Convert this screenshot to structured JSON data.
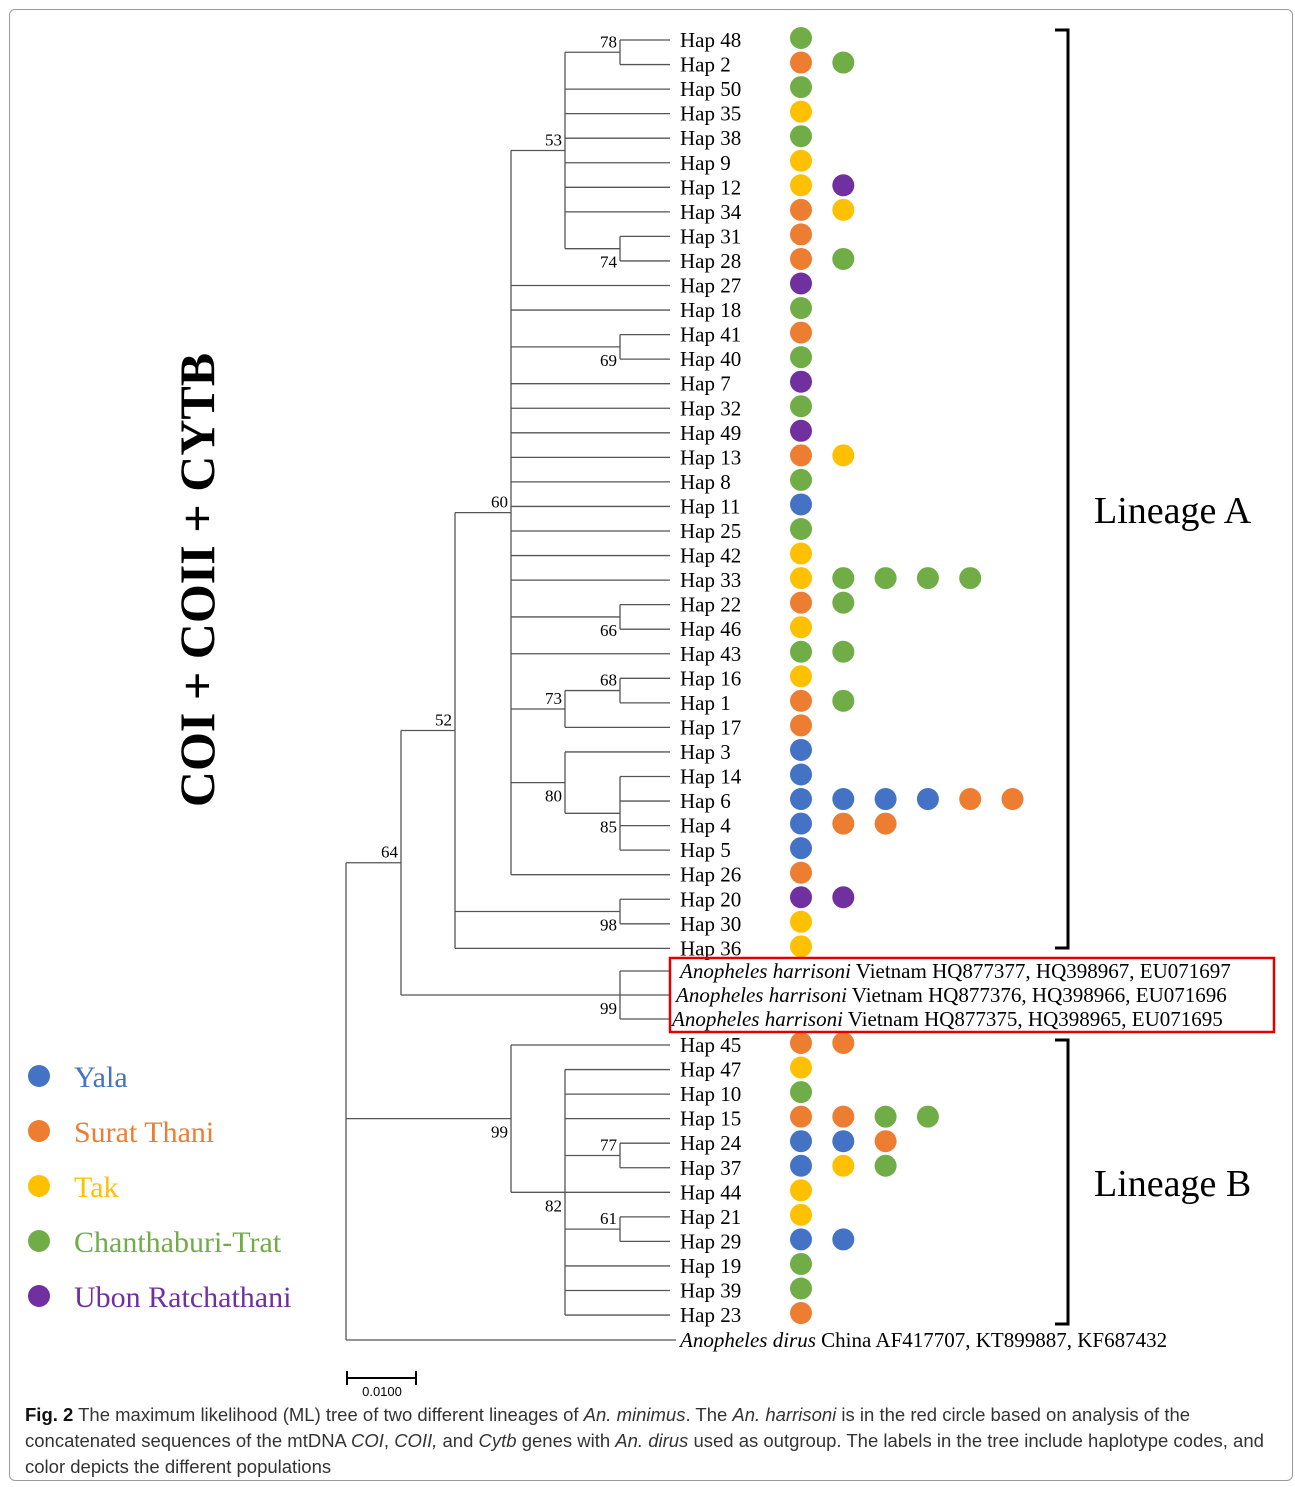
{
  "title": "COI + COII + CYTB",
  "colors": {
    "yala": "#4472C4",
    "surat_thani": "#ED7D31",
    "tak": "#FFC000",
    "chanthaburi_trat": "#70AD47",
    "ubon_ratchathani": "#7030A0",
    "highlight_box": "#E00000"
  },
  "legend": [
    {
      "key": "yala",
      "label": "Yala"
    },
    {
      "key": "surat_thani",
      "label": "Surat Thani"
    },
    {
      "key": "tak",
      "label": "Tak"
    },
    {
      "key": "chanthaburi_trat",
      "label": "Chanthaburi-Trat"
    },
    {
      "key": "ubon_ratchathani",
      "label": "Ubon Ratchathani"
    }
  ],
  "lineages": {
    "a": "Lineage A",
    "b": "Lineage B"
  },
  "scale_bar": "0.0100",
  "bootstrap": {
    "n78": "78",
    "n53": "53",
    "n74": "74",
    "n69": "69",
    "n60": "60",
    "n66": "66",
    "n73": "73",
    "n68": "68",
    "n52": "52",
    "n80": "80",
    "n85": "85",
    "n64": "64",
    "n98": "98",
    "n99h": "99",
    "n99b": "99",
    "n77": "77",
    "n82": "82",
    "n61": "61"
  },
  "haplotypes": [
    {
      "label": "Hap 48",
      "pops": [
        "chanthaburi_trat"
      ]
    },
    {
      "label": "Hap 2",
      "pops": [
        "surat_thani",
        "chanthaburi_trat"
      ]
    },
    {
      "label": "Hap 50",
      "pops": [
        "chanthaburi_trat"
      ]
    },
    {
      "label": "Hap 35",
      "pops": [
        "tak"
      ]
    },
    {
      "label": "Hap 38",
      "pops": [
        "chanthaburi_trat"
      ]
    },
    {
      "label": "Hap 9",
      "pops": [
        "tak"
      ]
    },
    {
      "label": "Hap 12",
      "pops": [
        "tak",
        "ubon_ratchathani"
      ]
    },
    {
      "label": "Hap 34",
      "pops": [
        "surat_thani",
        "tak"
      ]
    },
    {
      "label": "Hap 31",
      "pops": [
        "surat_thani"
      ]
    },
    {
      "label": "Hap 28",
      "pops": [
        "surat_thani",
        "chanthaburi_trat"
      ]
    },
    {
      "label": "Hap 27",
      "pops": [
        "ubon_ratchathani"
      ]
    },
    {
      "label": "Hap 18",
      "pops": [
        "chanthaburi_trat"
      ]
    },
    {
      "label": "Hap 41",
      "pops": [
        "surat_thani"
      ]
    },
    {
      "label": "Hap 40",
      "pops": [
        "chanthaburi_trat"
      ]
    },
    {
      "label": "Hap 7",
      "pops": [
        "ubon_ratchathani"
      ]
    },
    {
      "label": "Hap 32",
      "pops": [
        "chanthaburi_trat"
      ]
    },
    {
      "label": "Hap 49",
      "pops": [
        "ubon_ratchathani"
      ]
    },
    {
      "label": "Hap 13",
      "pops": [
        "surat_thani",
        "tak"
      ]
    },
    {
      "label": "Hap 8",
      "pops": [
        "chanthaburi_trat"
      ]
    },
    {
      "label": "Hap 11",
      "pops": [
        "yala"
      ]
    },
    {
      "label": "Hap 25",
      "pops": [
        "chanthaburi_trat"
      ]
    },
    {
      "label": "Hap 42",
      "pops": [
        "tak"
      ]
    },
    {
      "label": "Hap 33",
      "pops": [
        "tak",
        "chanthaburi_trat",
        "chanthaburi_trat",
        "chanthaburi_trat",
        "chanthaburi_trat"
      ]
    },
    {
      "label": "Hap 22",
      "pops": [
        "surat_thani",
        "chanthaburi_trat"
      ]
    },
    {
      "label": "Hap 46",
      "pops": [
        "tak"
      ]
    },
    {
      "label": "Hap 43",
      "pops": [
        "chanthaburi_trat",
        "chanthaburi_trat"
      ]
    },
    {
      "label": "Hap 16",
      "pops": [
        "tak"
      ]
    },
    {
      "label": "Hap 1",
      "pops": [
        "surat_thani",
        "chanthaburi_trat"
      ]
    },
    {
      "label": "Hap 17",
      "pops": [
        "surat_thani"
      ]
    },
    {
      "label": "Hap 3",
      "pops": [
        "yala"
      ]
    },
    {
      "label": "Hap 14",
      "pops": [
        "yala"
      ]
    },
    {
      "label": "Hap 6",
      "pops": [
        "yala",
        "yala",
        "yala",
        "yala",
        "surat_thani",
        "surat_thani"
      ]
    },
    {
      "label": "Hap 4",
      "pops": [
        "yala",
        "surat_thani",
        "surat_thani"
      ]
    },
    {
      "label": "Hap 5",
      "pops": [
        "yala"
      ]
    },
    {
      "label": "Hap 26",
      "pops": [
        "surat_thani"
      ]
    },
    {
      "label": "Hap 20",
      "pops": [
        "ubon_ratchathani",
        "ubon_ratchathani"
      ]
    },
    {
      "label": "Hap 30",
      "pops": [
        "tak"
      ]
    },
    {
      "label": "Hap 36",
      "pops": [
        "tak"
      ]
    },
    {
      "label": "Hap 45",
      "pops": [
        "surat_thani",
        "surat_thani"
      ]
    },
    {
      "label": "Hap 47",
      "pops": [
        "tak"
      ]
    },
    {
      "label": "Hap 10",
      "pops": [
        "chanthaburi_trat"
      ]
    },
    {
      "label": "Hap 15",
      "pops": [
        "surat_thani",
        "surat_thani",
        "chanthaburi_trat",
        "chanthaburi_trat"
      ]
    },
    {
      "label": "Hap 24",
      "pops": [
        "yala",
        "yala",
        "surat_thani"
      ]
    },
    {
      "label": "Hap 37",
      "pops": [
        "yala",
        "tak",
        "chanthaburi_trat"
      ]
    },
    {
      "label": "Hap 44",
      "pops": [
        "tak"
      ]
    },
    {
      "label": "Hap 21",
      "pops": [
        "tak"
      ]
    },
    {
      "label": "Hap 29",
      "pops": [
        "yala",
        "yala"
      ]
    },
    {
      "label": "Hap 19",
      "pops": [
        "chanthaburi_trat"
      ]
    },
    {
      "label": "Hap 39",
      "pops": [
        "chanthaburi_trat"
      ]
    },
    {
      "label": "Hap 23",
      "pops": [
        "surat_thani"
      ]
    }
  ],
  "harrisoni": [
    {
      "species": "Anopheles harrisoni",
      "rest": " Vietnam HQ877377, HQ398967, EU071697"
    },
    {
      "species": "Anopheles harrisoni",
      "rest": " Vietnam HQ877376, HQ398966, EU071696"
    },
    {
      "species": "Anopheles harrisoni",
      "rest": " Vietnam HQ877375, HQ398965, EU071695"
    }
  ],
  "outgroup": {
    "species": "Anopheles dirus",
    "rest": " China AF417707, KT899887, KF687432"
  },
  "caption": {
    "fig": "Fig. 2",
    "t1": "  The maximum likelihood (ML) tree of two different lineages of ",
    "i1": "An. minimus",
    "t2": ". The ",
    "i2": "An. harrisoni",
    "t3": " is in the red circle based on analysis of the concatenated sequences of the mtDNA ",
    "i3": "COI",
    "t4": ", ",
    "i4": "COII,",
    "t5": " and ",
    "i5": "Cytb",
    "t6": " genes with ",
    "i6": "An. dirus",
    "t7": " used as outgroup. The labels in the tree include haplotype codes, and color depicts the different populations"
  }
}
